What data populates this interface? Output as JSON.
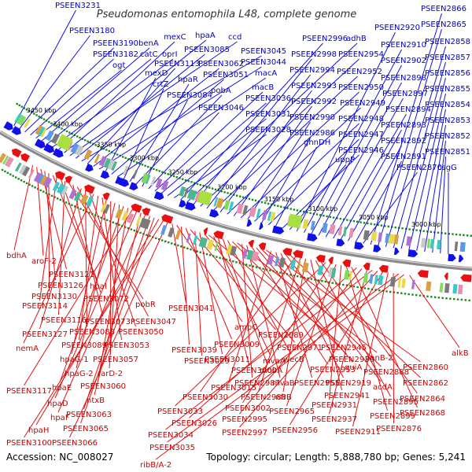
{
  "title": "Pseudomonas entomophila L48, complete genome",
  "footer": {
    "accession": "Accession: NC_008027",
    "topology": "Topology: circular; Length: 5,888,780 bp; Genes: 5,241"
  },
  "colors": {
    "forward": "#1010e8",
    "reverse": "#e81010",
    "backbone": "#8a8a8a",
    "ticks": "#1a8a1a"
  },
  "kbp_labels": [
    "3450 kbp",
    "3400 kbp",
    "3350 kbp",
    "3300 kbp",
    "3250 kbp",
    "3200 kbp",
    "3150 kbp",
    "3100 kbp",
    "3050 kbp",
    "3000 kbp"
  ],
  "top_genes": [
    "PSEEN3231",
    "PSEEN3180",
    "PSEEN3190",
    "PSEEN3182",
    "ogt",
    "benA",
    "catC",
    "oprI",
    "mexC",
    "hpaA",
    "ccd",
    "PSEEN3085",
    "PSEEN3045",
    "PSEEN3113",
    "PSEEN3062",
    "PSEEN3044",
    "mexD",
    "PSEEN3051",
    "macA",
    "crtZ",
    "hpaR",
    "pobA",
    "PSEEN3084",
    "PSEEN3046",
    "macB",
    "PSEEN3036",
    "PSEEN3031",
    "PSEEN3028",
    "PSEEN2996",
    "adhB",
    "PSEEN2998",
    "PSEEN2954",
    "PSEEN2994",
    "PSEEN2952",
    "PSEEN2993",
    "PSEEN2950",
    "PSEEN2992",
    "PSEEN2949",
    "PSEEN2990",
    "PSEEN2948",
    "PSEEN2986",
    "PSEEN2947",
    "ghnDH",
    "PSEEN2946",
    "uppP",
    "PSEEN2920",
    "PSEEN2910",
    "PSEEN2902",
    "PSEEN2898",
    "PSEEN2897",
    "PSEEN2894",
    "PSEEN2893",
    "PSEEN2892",
    "PSEEN2891",
    "PSEEN2870",
    "PSEEN2866",
    "PSEEN2865",
    "PSEEN2858",
    "PSEEN2857",
    "PSEEN2856",
    "PSEEN2855",
    "PSEEN2854",
    "PSEEN2853",
    "PSEEN2852",
    "PSEEN2851",
    "csgG"
  ],
  "bottom_genes": [
    "bdhA",
    "aroF-2",
    "PSEEN3121",
    "PSEEN3126",
    "PSEEN3130",
    "hpaI",
    "PSEEN3114",
    "PSEEN3072",
    "PSEEN3116",
    "pobR",
    "PSEEN3073",
    "PSEEN3047",
    "PSEEN3127",
    "PSEEN3088",
    "PSEEN3050",
    "nemA",
    "PSEEN3089",
    "PSEEN3053",
    "hpaG-1",
    "PSEEN3057",
    "hpaG-2",
    "rarD-2",
    "hpaE",
    "PSEEN3060",
    "PSEEN3117",
    "hpaD",
    "ntxB",
    "hpaF",
    "PSEEN3063",
    "PSEEN3065",
    "hpaH",
    "PSEEN3100",
    "PSEEN3066",
    "PSEEN3041",
    "ampC",
    "PSEEN3039",
    "PSEEN3009",
    "PSEEN2989",
    "PSEEN3029",
    "PSEEN3011",
    "PSEEN2971",
    "PSEEN2945",
    "mvaA",
    "PSEEN3000",
    "mobA",
    "wecB",
    "PSEEN2930",
    "panB-2",
    "PSEEN2987",
    "mvaB",
    "PSEEN2953",
    "quiA",
    "PSEEN2888",
    "PSEEN2860",
    "PSEEN3015",
    "PSEEN2955",
    "PSEEN2919",
    "acdA",
    "PSEEN2862",
    "PSEEN3030",
    "PSEEN2988",
    "nfrB",
    "PSEEN2941",
    "PSEEN2895",
    "PSEEN2864",
    "PSEEN3033",
    "PSEEN3002",
    "PSEEN2965",
    "PSEEN2931",
    "PSEEN2899",
    "PSEEN2868",
    "PSEEN3026",
    "PSEEN2995",
    "PSEEN2937",
    "PSEEN3034",
    "PSEEN2997",
    "PSEEN2956",
    "PSEEN2911",
    "PSEEN2876",
    "PSEEN3035",
    "ribB/A-2",
    "alkB"
  ]
}
